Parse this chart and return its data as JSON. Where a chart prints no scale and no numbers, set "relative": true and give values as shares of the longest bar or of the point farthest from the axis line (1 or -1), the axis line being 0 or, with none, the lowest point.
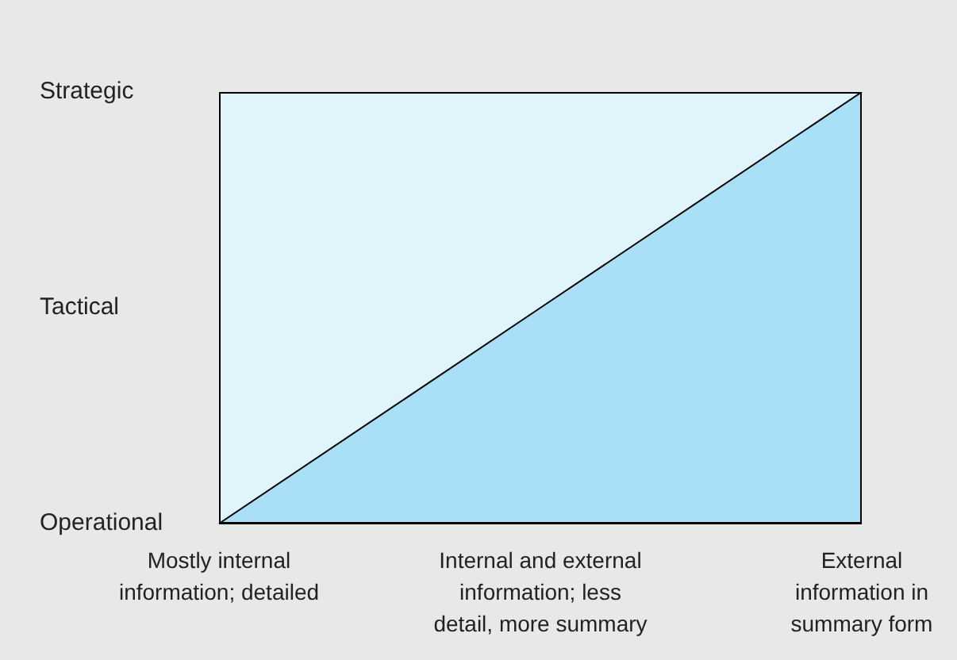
{
  "chart_data": {
    "type": "area",
    "relative": true,
    "categories": [
      "Mostly internal information; detailed",
      "Internal and external information; less detail, more summary",
      "External information in summary form"
    ],
    "series": [
      {
        "color": "#a9dff7",
        "values": [
          0,
          0.5,
          1
        ]
      }
    ],
    "annotations": [
      "Operational",
      "Tactical",
      "Strategic"
    ],
    "grid": false,
    "legend": false
  }
}
